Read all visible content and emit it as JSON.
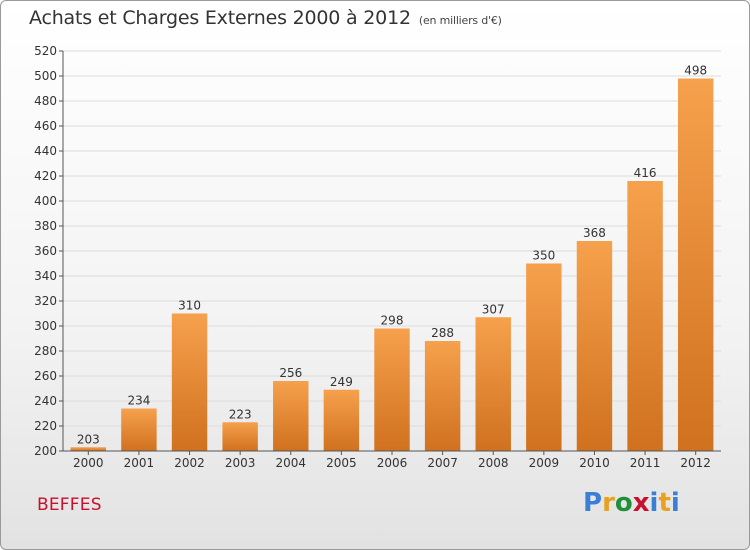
{
  "header": {
    "title": "Achats et Charges Externes 2000 à 2012",
    "subtitle": "(en milliers d'€)"
  },
  "footer": {
    "commune": "BEFFES",
    "logo": {
      "letters": [
        "P",
        "r",
        "o",
        "x",
        "i",
        "t",
        "i"
      ],
      "colors": [
        "#3a7fd5",
        "#e9a21e",
        "#1f8f3a",
        "#c8102e",
        "#3a7fd5",
        "#e9a21e",
        "#3a7fd5"
      ]
    }
  },
  "colors": {
    "bar_top": "#f6a14d",
    "bar_bottom": "#d0711f",
    "grid": "#dcdcdc",
    "axis": "#555555",
    "text": "#333333"
  },
  "chart_data": {
    "type": "bar",
    "title": "Achats et Charges Externes 2000 à 2012",
    "subtitle": "(en milliers d'€)",
    "categories": [
      "2000",
      "2001",
      "2002",
      "2003",
      "2004",
      "2005",
      "2006",
      "2007",
      "2008",
      "2009",
      "2010",
      "2011",
      "2012"
    ],
    "values": [
      203,
      234,
      310,
      223,
      256,
      249,
      298,
      288,
      307,
      350,
      368,
      416,
      498
    ],
    "ylim": [
      200,
      520
    ],
    "yticks": [
      200,
      220,
      240,
      260,
      280,
      300,
      320,
      340,
      360,
      380,
      400,
      420,
      440,
      460,
      480,
      500,
      520
    ],
    "grid": true,
    "data_labels": true
  }
}
